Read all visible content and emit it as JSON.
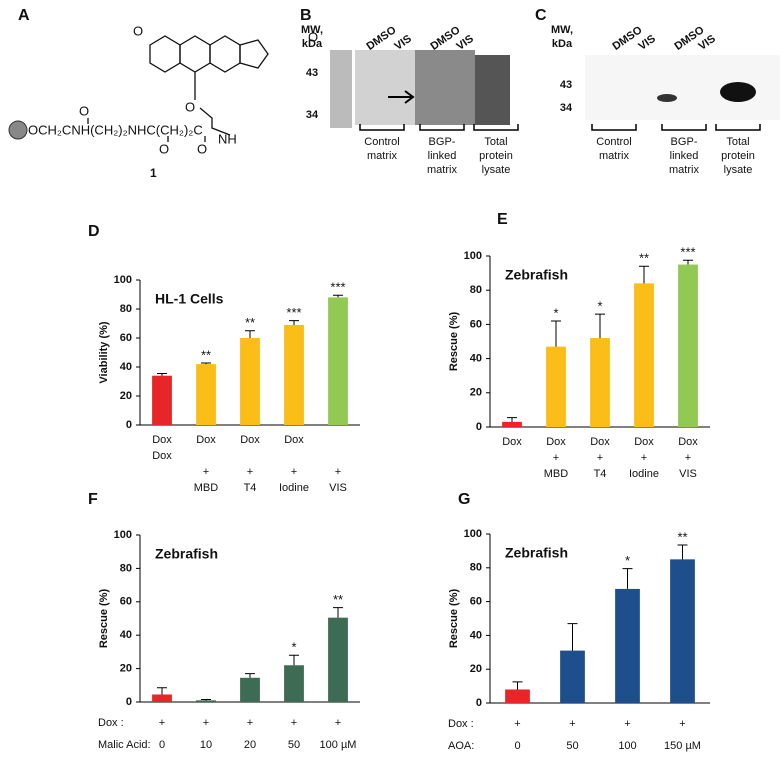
{
  "panel_labels": [
    "A",
    "B",
    "C",
    "D",
    "E",
    "F",
    "G"
  ],
  "structure": {
    "chain": "OCH₂CNH(CH₂)₂NHC(CH₂)₂C",
    "nh": "NH",
    "atoms": [
      "O",
      "O",
      "O",
      "O",
      "O",
      "O"
    ],
    "compound": "1"
  },
  "blot_b": {
    "mw": [
      "MW,",
      "kDa"
    ],
    "markers": [
      "43",
      "34"
    ],
    "lanes": [
      "DMSO",
      "VIS",
      "DMSO",
      "VIS"
    ],
    "groups": [
      [
        "Control",
        "matrix"
      ],
      [
        "BGP-",
        "linked",
        "matrix"
      ],
      [
        "Total",
        "protein",
        "lysate"
      ]
    ]
  },
  "blot_c": {
    "mw": [
      "MW,",
      "kDa"
    ],
    "markers": [
      "43",
      "34"
    ],
    "lanes": [
      "DMSO",
      "VIS",
      "DMSO",
      "VIS"
    ],
    "groups": [
      [
        "Control",
        "matrix"
      ],
      [
        "BGP-",
        "linked",
        "matrix"
      ],
      [
        "Total",
        "protein",
        "lysate"
      ]
    ]
  },
  "chart_data": [
    {
      "type": "bar",
      "title": "HL-1 Cells",
      "ylabel": "Viability (%)",
      "ylim": [
        0,
        100
      ],
      "yticks": [
        0,
        20,
        40,
        60,
        80,
        100
      ],
      "categories": [
        [
          "Dox",
          "Dox"
        ],
        [
          "Dox",
          null,
          "+",
          "MBD"
        ],
        [
          "Dox",
          null,
          "+",
          "T4"
        ],
        [
          "Dox",
          null,
          "+",
          "Iodine"
        ],
        [
          null,
          null,
          "+",
          "VIS"
        ]
      ],
      "values": [
        34,
        42,
        60,
        69,
        88
      ],
      "errors": [
        1.5,
        0.8,
        5,
        3,
        1.5
      ],
      "colors": [
        "#e8262a",
        "#fbbd17",
        "#fbbd17",
        "#fbbd17",
        "#92c953"
      ],
      "significance": [
        null,
        "**",
        "**",
        "***",
        "***"
      ]
    },
    {
      "type": "bar",
      "title": "Zebrafish",
      "ylabel": "Rescue (%)",
      "ylim": [
        0,
        100
      ],
      "yticks": [
        0,
        20,
        40,
        60,
        80,
        100
      ],
      "categories": [
        [
          "Dox"
        ],
        [
          "Dox",
          "+",
          "MBD"
        ],
        [
          "Dox",
          "+",
          "T4"
        ],
        [
          "Dox",
          "+",
          "Iodine"
        ],
        [
          "Dox",
          "+",
          "VIS"
        ]
      ],
      "values": [
        3,
        47,
        52,
        84,
        95
      ],
      "errors": [
        2.5,
        15,
        14,
        10,
        2.5
      ],
      "colors": [
        "#e8262a",
        "#fbbd17",
        "#fbbd17",
        "#fbbd17",
        "#92c953"
      ],
      "significance": [
        null,
        "*",
        "*",
        "**",
        "***"
      ]
    },
    {
      "type": "bar",
      "title": "Zebrafish",
      "ylabel": "Rescue (%)",
      "ylim": [
        0,
        100
      ],
      "yticks": [
        0,
        20,
        40,
        60,
        80,
        100
      ],
      "rows": [
        {
          "label": "Dox :",
          "values": [
            "+",
            "+",
            "+",
            "+",
            "+"
          ]
        },
        {
          "label": "Malic Acid:",
          "values": [
            "0",
            "10",
            "20",
            "50",
            "100 µM"
          ]
        }
      ],
      "values": [
        4.5,
        1,
        14.5,
        22,
        50.5
      ],
      "errors": [
        4,
        0.5,
        2.5,
        6,
        6
      ],
      "colors": [
        "#e8262a",
        "#3e6b53",
        "#3e6b53",
        "#3e6b53",
        "#3e6b53"
      ],
      "significance": [
        null,
        null,
        null,
        "*",
        "**"
      ]
    },
    {
      "type": "bar",
      "title": "Zebrafish",
      "ylabel": "Rescue (%)",
      "ylim": [
        0,
        100
      ],
      "yticks": [
        0,
        20,
        40,
        60,
        80,
        100
      ],
      "rows": [
        {
          "label": "Dox :",
          "values": [
            "+",
            "+",
            "+",
            "+"
          ]
        },
        {
          "label": "AOA:",
          "values": [
            "0",
            "50",
            "100",
            "150 µM"
          ]
        }
      ],
      "values": [
        8,
        31,
        67.5,
        85
      ],
      "errors": [
        4.5,
        16,
        12,
        8.5
      ],
      "colors": [
        "#e8262a",
        "#1f4e8c",
        "#1f4e8c",
        "#1f4e8c"
      ],
      "significance": [
        null,
        null,
        "*",
        "**"
      ]
    }
  ]
}
